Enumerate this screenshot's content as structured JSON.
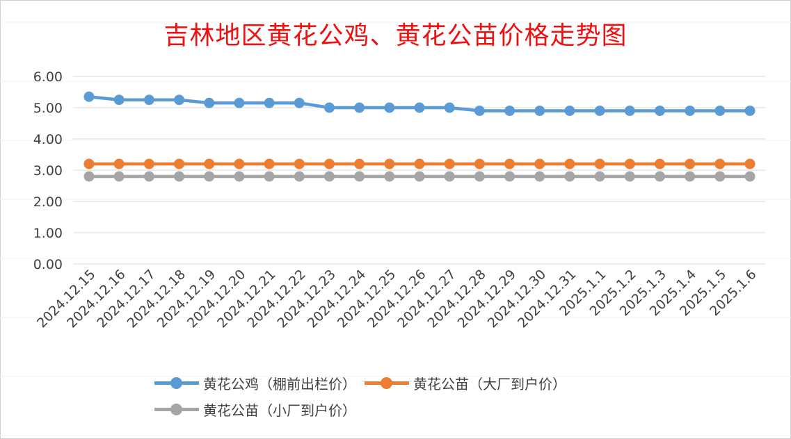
{
  "chart_data": {
    "type": "line",
    "title": "吉林地区黄花公鸡、黄花公苗价格走势图",
    "xlabel": "",
    "ylabel": "",
    "ylim": [
      0,
      6
    ],
    "yticks": [
      "0.00",
      "1.00",
      "2.00",
      "3.00",
      "4.00",
      "5.00",
      "6.00"
    ],
    "grid": true,
    "legend_position": "bottom",
    "categories": [
      "2024.12.15",
      "2024.12.16",
      "2024.12.17",
      "2024.12.18",
      "2024.12.19",
      "2024.12.20",
      "2024.12.21",
      "2024.12.22",
      "2024.12.23",
      "2024.12.24",
      "2024.12.25",
      "2024.12.26",
      "2024.12.27",
      "2024.12.28",
      "2024.12.29",
      "2024.12.30",
      "2024.12.31",
      "2025.1.1",
      "2025.1.2",
      "2025.1.3",
      "2025.1.4",
      "2025.1.5",
      "2025.1.6"
    ],
    "series": [
      {
        "name": "黄花公鸡（棚前出栏价）",
        "color": "#5b9bd5",
        "values": [
          5.35,
          5.25,
          5.25,
          5.25,
          5.15,
          5.15,
          5.15,
          5.15,
          5.0,
          5.0,
          5.0,
          5.0,
          5.0,
          4.9,
          4.9,
          4.9,
          4.9,
          4.9,
          4.9,
          4.9,
          4.9,
          4.9,
          4.9
        ]
      },
      {
        "name": "黄花公苗（大厂到户价）",
        "color": "#ed7d31",
        "values": [
          3.2,
          3.2,
          3.2,
          3.2,
          3.2,
          3.2,
          3.2,
          3.2,
          3.2,
          3.2,
          3.2,
          3.2,
          3.2,
          3.2,
          3.2,
          3.2,
          3.2,
          3.2,
          3.2,
          3.2,
          3.2,
          3.2,
          3.2
        ]
      },
      {
        "name": "黄花公苗（小厂到户价）",
        "color": "#a5a5a5",
        "values": [
          2.8,
          2.8,
          2.8,
          2.8,
          2.8,
          2.8,
          2.8,
          2.8,
          2.8,
          2.8,
          2.8,
          2.8,
          2.8,
          2.8,
          2.8,
          2.8,
          2.8,
          2.8,
          2.8,
          2.8,
          2.8,
          2.8,
          2.8
        ]
      }
    ]
  }
}
